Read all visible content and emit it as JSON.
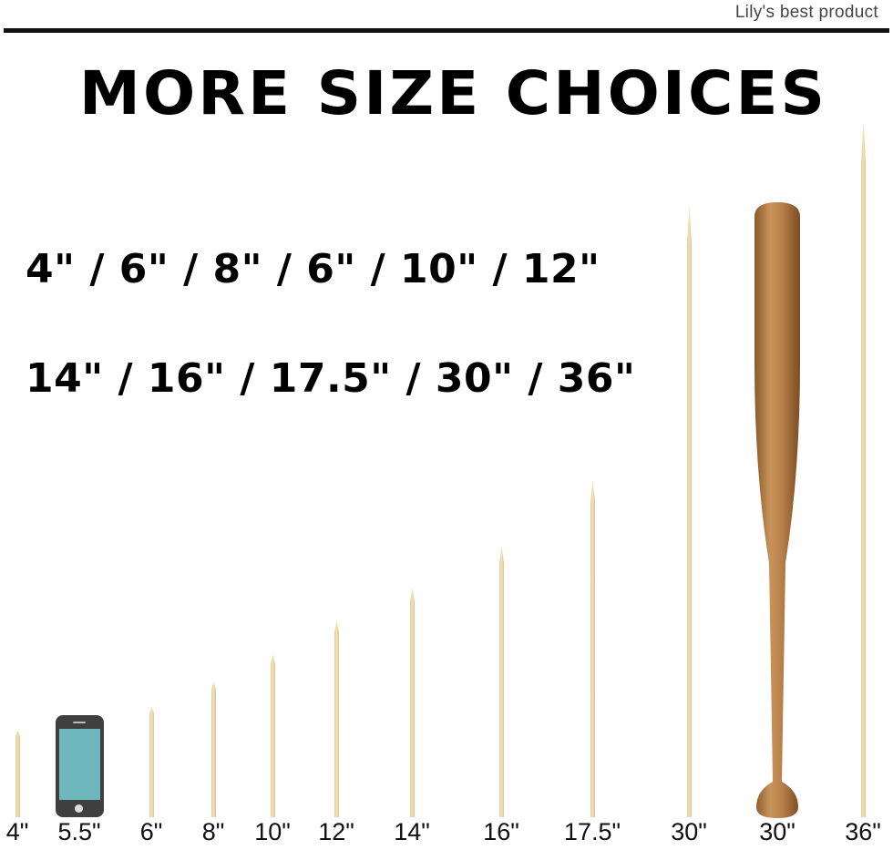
{
  "brand": "Lily's best product",
  "title": "MORE SIZE CHOICES",
  "size_lines": [
    "4\" / 6\" / 8\" / 6\" / 10\" / 12\"",
    "14\" / 16\" / 17.5\" / 30\" / 36\""
  ],
  "items": [
    {
      "label": "4\"",
      "kind": "skewer"
    },
    {
      "label": "5.5\"",
      "kind": "phone"
    },
    {
      "label": "6\"",
      "kind": "skewer"
    },
    {
      "label": "8\"",
      "kind": "skewer"
    },
    {
      "label": "10\"",
      "kind": "skewer"
    },
    {
      "label": "12\"",
      "kind": "skewer"
    },
    {
      "label": "14\"",
      "kind": "skewer"
    },
    {
      "label": "16\"",
      "kind": "skewer"
    },
    {
      "label": "17.5\"",
      "kind": "skewer"
    },
    {
      "label": "30\"",
      "kind": "skewer"
    },
    {
      "label": "30\"",
      "kind": "baseball-bat"
    },
    {
      "label": "36\"",
      "kind": "skewer"
    }
  ],
  "colors": {
    "skewer": "#e8d6a6",
    "phone_body": "#3f3f3f",
    "phone_screen": "#6db7bd",
    "bat": "#b07a45"
  }
}
